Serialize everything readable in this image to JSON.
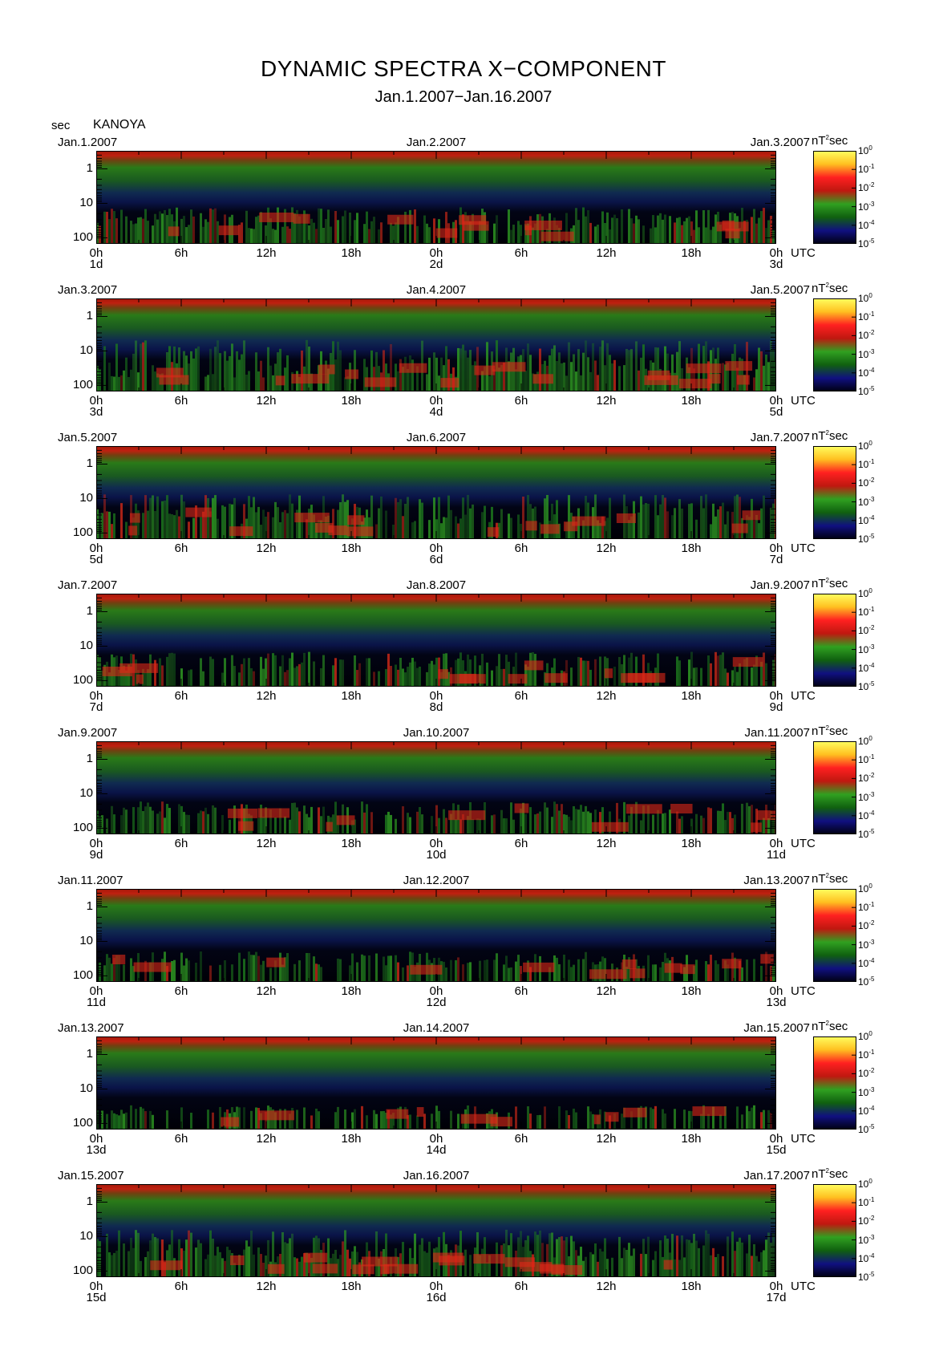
{
  "chart_data": {
    "type": "heatmap",
    "title": "DYNAMIC SPECTRA X−COMPONENT",
    "subtitle": "Jan.1.2007−Jan.16.2007",
    "station": "KANOYA",
    "y_unit": "sec",
    "y_ticks": [
      "1",
      "10",
      "100"
    ],
    "y_scale": "log",
    "x_ticks": [
      "0h",
      "6h",
      "12h",
      "18h",
      "0h",
      "6h",
      "12h",
      "18h",
      "0h"
    ],
    "x_unit": "UTC",
    "colorbar": {
      "unit": "nT",
      "unit_exp": "2",
      "unit_suffix": "sec",
      "labels": [
        {
          "base": "10",
          "exp": "0"
        },
        {
          "base": "10",
          "exp": "-1"
        },
        {
          "base": "10",
          "exp": "-2"
        },
        {
          "base": "10",
          "exp": "-3"
        },
        {
          "base": "10",
          "exp": "-4"
        },
        {
          "base": "10",
          "exp": "-5"
        }
      ],
      "colors": [
        "#ffff60",
        "#ffc020",
        "#ff2020",
        "#c01810",
        "#30a020",
        "#106010",
        "#101080",
        "#000010"
      ]
    },
    "panels": [
      {
        "date_left": "Jan.1.2007",
        "date_mid": "Jan.2.2007",
        "date_right": "Jan.3.2007",
        "day_left": "1d",
        "day_mid": "2d",
        "day_right": "3d"
      },
      {
        "date_left": "Jan.3.2007",
        "date_mid": "Jan.4.2007",
        "date_right": "Jan.5.2007",
        "day_left": "3d",
        "day_mid": "4d",
        "day_right": "5d"
      },
      {
        "date_left": "Jan.5.2007",
        "date_mid": "Jan.6.2007",
        "date_right": "Jan.7.2007",
        "day_left": "5d",
        "day_mid": "6d",
        "day_right": "7d"
      },
      {
        "date_left": "Jan.7.2007",
        "date_mid": "Jan.8.2007",
        "date_right": "Jan.9.2007",
        "day_left": "7d",
        "day_mid": "8d",
        "day_right": "9d"
      },
      {
        "date_left": "Jan.9.2007",
        "date_mid": "Jan.10.2007",
        "date_right": "Jan.11.2007",
        "day_left": "9d",
        "day_mid": "10d",
        "day_right": "11d"
      },
      {
        "date_left": "Jan.11.2007",
        "date_mid": "Jan.12.2007",
        "date_right": "Jan.13.2007",
        "day_left": "11d",
        "day_mid": "12d",
        "day_right": "13d"
      },
      {
        "date_left": "Jan.13.2007",
        "date_mid": "Jan.14.2007",
        "date_right": "Jan.15.2007",
        "day_left": "13d",
        "day_mid": "14d",
        "day_right": "15d"
      },
      {
        "date_left": "Jan.15.2007",
        "date_mid": "Jan.16.2007",
        "date_right": "Jan.17.2007",
        "day_left": "15d",
        "day_mid": "16d",
        "day_right": "17d"
      }
    ]
  }
}
